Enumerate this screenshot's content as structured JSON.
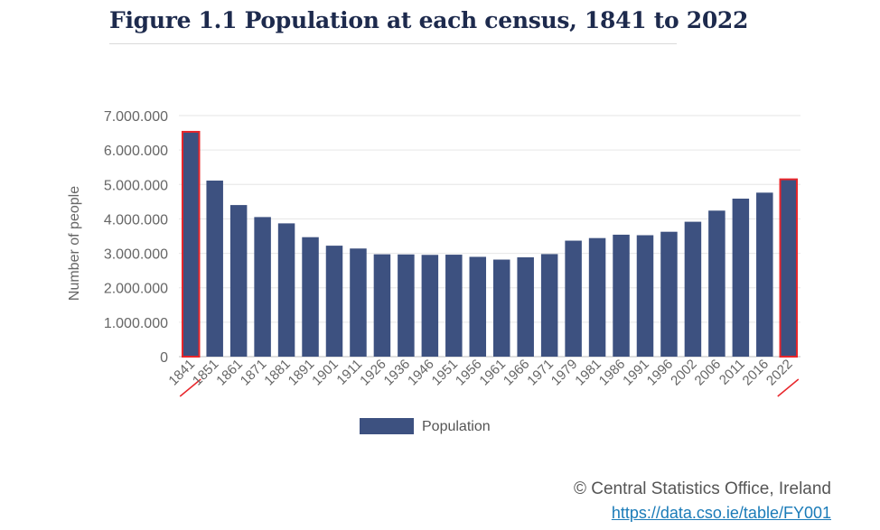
{
  "page": {
    "title": "Figure 1.1 Population at each census, 1841 to 2022",
    "credit": "© Central Statistics Office, Ireland",
    "source_link": "https://data.cso.ie/table/FY001"
  },
  "chart_data": {
    "type": "bar",
    "title": "Figure 1.1 Population at each census, 1841 to 2022",
    "xlabel": "",
    "ylabel": "Number of people",
    "ylim": [
      0,
      7000000
    ],
    "yticks": [
      "0",
      "1.000.000",
      "2.000.000",
      "3.000.000",
      "4.000.000",
      "5.000.000",
      "6.000.000",
      "7.000.000"
    ],
    "categories": [
      "1841",
      "1851",
      "1861",
      "1871",
      "1881",
      "1891",
      "1901",
      "1911",
      "1926",
      "1936",
      "1946",
      "1951",
      "1956",
      "1961",
      "1966",
      "1971",
      "1979",
      "1981",
      "1986",
      "1991",
      "1996",
      "2002",
      "2006",
      "2011",
      "2016",
      "2022"
    ],
    "series": [
      {
        "name": "Population",
        "color": "#3d5180",
        "values": [
          6529000,
          5112000,
          4402000,
          4053000,
          3870000,
          3469000,
          3222000,
          3140000,
          2972000,
          2968000,
          2955000,
          2961000,
          2898000,
          2818000,
          2884000,
          2978000,
          3368000,
          3443000,
          3541000,
          3526000,
          3626000,
          3917000,
          4240000,
          4588000,
          4762000,
          5149000
        ]
      }
    ],
    "highlighted": [
      "1841",
      "2022"
    ],
    "highlight_color": "#e8262b",
    "grid": true,
    "legend": "bottom-center"
  }
}
